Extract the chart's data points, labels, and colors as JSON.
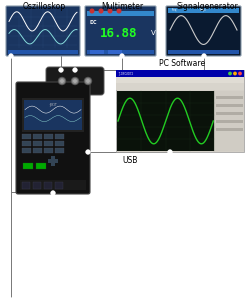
{
  "title_main": "Oszilloskop",
  "title_multi": "Multimeter",
  "title_sig": "Signalgenerator",
  "title_pc": "PC Software",
  "label_usb": "USB",
  "bg_color": "#ffffff",
  "osc_bg": "#1a3560",
  "osc_grid": "#2a4a7a",
  "osc_bar": "#2255aa",
  "osc_wave1_color": "#ffffff",
  "osc_wave2_color": "#88dddd",
  "multi_bg": "#1a3560",
  "multi_bar": "#2255aa",
  "multi_dot_color": "#cc3333",
  "multi_text_color": "#22ff22",
  "sig_bg": "#0a1a30",
  "sig_bar": "#2255aa",
  "sig_wave_color": "#cccccc",
  "pc_outer": "#d4d0c8",
  "pc_titlebar": "#0000aa",
  "pc_menubar": "#c8c4bc",
  "pc_plot_bg": "#0a120a",
  "pc_wave1": "#22cc22",
  "pc_wave2": "#22cc22",
  "device_bg": "#111111",
  "device_edge": "#444444",
  "device_screen_bg": "#1a3560",
  "device_btn_color": "#334455",
  "device_green_btn": "#00aa00",
  "conn_bg": "#1a1a1a",
  "line_color": "#777777",
  "dot_fill": "#ffffff",
  "dot_edge": "#888888"
}
